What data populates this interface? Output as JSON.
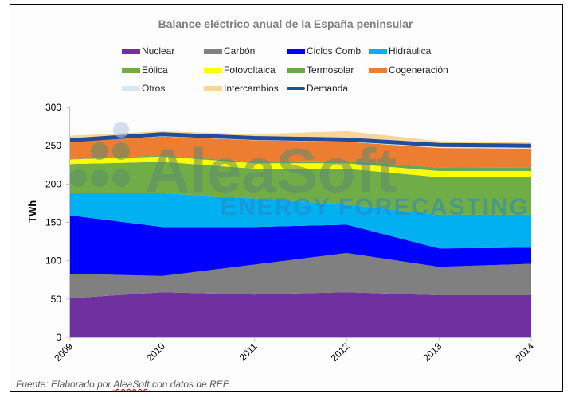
{
  "chart_data": {
    "type": "area",
    "stacked": true,
    "title": "Balance eléctrico anual de la España peninsular",
    "xlabel": "",
    "ylabel": "TWh",
    "ylim": [
      0,
      300
    ],
    "yticks": [
      0,
      50,
      100,
      150,
      200,
      250,
      300
    ],
    "grid": false,
    "legend_position": "top",
    "categories": [
      "2009",
      "2010",
      "2011",
      "2012",
      "2013",
      "2014"
    ],
    "series": [
      {
        "name": "Nuclear",
        "color": "#7030a0",
        "values": [
          51,
          59,
          56,
          59,
          55,
          55
        ]
      },
      {
        "name": "Carbón",
        "color": "#808080",
        "values": [
          32,
          21,
          39,
          51,
          37,
          41
        ]
      },
      {
        "name": "Ciclos Comb.",
        "color": "#0000ff",
        "values": [
          76,
          64,
          49,
          37,
          24,
          21
        ]
      },
      {
        "name": "Hidráulica",
        "color": "#00b0f0",
        "values": [
          29,
          44,
          37,
          26,
          44,
          43
        ]
      },
      {
        "name": "Eólica",
        "color": "#70ad47",
        "values": [
          38,
          41,
          39,
          47,
          49,
          49
        ]
      },
      {
        "name": "Fotovoltaica",
        "color": "#ffff00",
        "values": [
          6,
          7,
          7,
          7,
          8,
          8
        ]
      },
      {
        "name": "Termosolar",
        "color": "#6aa84f",
        "values": [
          0.5,
          1.5,
          2,
          3,
          4.5,
          5
        ]
      },
      {
        "name": "Cogeneración",
        "color": "#ed7d31",
        "values": [
          22.5,
          24.5,
          28,
          25,
          25.5,
          24
        ]
      },
      {
        "name": "Otros",
        "color": "#dce6f2",
        "values": [
          1,
          1,
          1,
          1,
          1,
          1
        ]
      },
      {
        "name": "Intercambios",
        "color": "#fad59a",
        "values": [
          7,
          6,
          7,
          13,
          8,
          7
        ]
      }
    ],
    "line_series": [
      {
        "name": "Demanda",
        "color": "#1f4e9c",
        "values": [
          257,
          265,
          260,
          258,
          251,
          250
        ]
      }
    ]
  },
  "legend": [
    {
      "label": "Nuclear",
      "color": "#7030a0",
      "kind": "box"
    },
    {
      "label": "Carbón",
      "color": "#808080",
      "kind": "box"
    },
    {
      "label": "Ciclos Comb.",
      "color": "#0000ff",
      "kind": "box"
    },
    {
      "label": "Hidráulica",
      "color": "#00b0f0",
      "kind": "box"
    },
    {
      "label": "Eólica",
      "color": "#70ad47",
      "kind": "box"
    },
    {
      "label": "Fotovoltaica",
      "color": "#ffff00",
      "kind": "box"
    },
    {
      "label": "Termosolar",
      "color": "#6aa84f",
      "kind": "box"
    },
    {
      "label": "Cogeneración",
      "color": "#ed7d31",
      "kind": "box"
    },
    {
      "label": "Otros",
      "color": "#dce6f2",
      "kind": "box"
    },
    {
      "label": "Intercambios",
      "color": "#fad59a",
      "kind": "box"
    },
    {
      "label": "Demanda",
      "color": "#1f4e9c",
      "kind": "line"
    }
  ],
  "watermark": {
    "brand": "AleaSoft",
    "tagline": "ENERGY FORECASTING"
  },
  "source": {
    "prefix": "Fuente: Elaborado por ",
    "brand": "AleaSoft",
    "suffix": " con datos de REE."
  }
}
